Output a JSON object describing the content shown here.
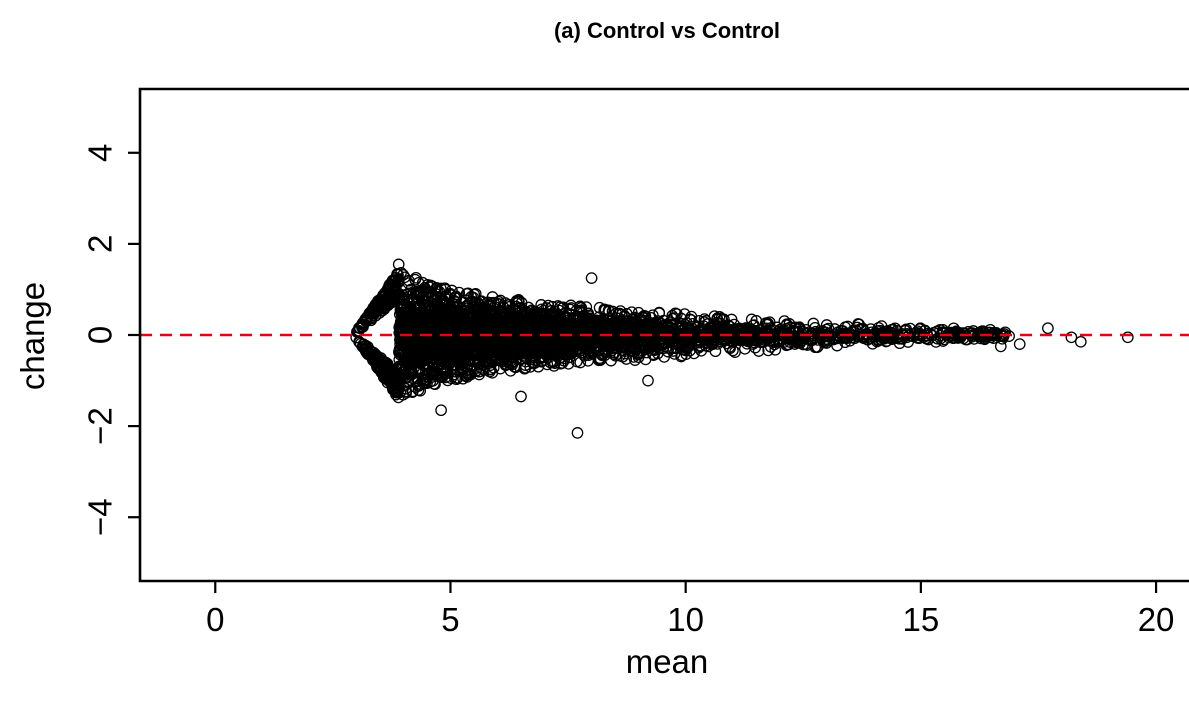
{
  "chart_data": {
    "type": "scatter",
    "title": "(a) Control vs Control",
    "xlabel": "mean",
    "ylabel": "change",
    "xlim": [
      -1.6,
      20.7
    ],
    "ylim": [
      -5.4,
      5.4
    ],
    "xticks": [
      0,
      5,
      10,
      15,
      20
    ],
    "yticks": [
      -4,
      -2,
      0,
      2,
      4
    ],
    "xtick_labels": [
      "0",
      "5",
      "10",
      "15",
      "20"
    ],
    "ytick_labels": [
      "−4",
      "−2",
      "0",
      "2",
      "4"
    ],
    "reference_line": {
      "y": 0,
      "style": "dashed",
      "color": "#e8000b"
    },
    "marker": "open-circle",
    "grid": false,
    "box": "left-bottom-top",
    "notable_points": [
      {
        "x": 7.7,
        "y": -2.15
      },
      {
        "x": 8.0,
        "y": 1.25
      },
      {
        "x": 9.2,
        "y": -1.0
      },
      {
        "x": 4.8,
        "y": -1.65
      },
      {
        "x": 6.5,
        "y": -1.35
      },
      {
        "x": 3.9,
        "y": 1.55
      },
      {
        "x": 17.7,
        "y": 0.15
      },
      {
        "x": 18.2,
        "y": -0.05
      },
      {
        "x": 18.4,
        "y": -0.15
      },
      {
        "x": 19.4,
        "y": -0.05
      },
      {
        "x": 17.1,
        "y": -0.2
      },
      {
        "x": 16.7,
        "y": -0.25
      }
    ],
    "envelope": {
      "x_start": 2.95,
      "density_peak_x": 4.2,
      "half_width_at": [
        {
          "x": 2.95,
          "y": 0.0
        },
        {
          "x": 3.9,
          "y": 1.4
        },
        {
          "x": 5.0,
          "y": 1.0
        },
        {
          "x": 7.0,
          "y": 0.7
        },
        {
          "x": 9.0,
          "y": 0.55
        },
        {
          "x": 11.0,
          "y": 0.38
        },
        {
          "x": 13.0,
          "y": 0.28
        },
        {
          "x": 15.0,
          "y": 0.2
        },
        {
          "x": 16.5,
          "y": 0.12
        },
        {
          "x": 17.5,
          "y": 0.08
        }
      ]
    }
  }
}
